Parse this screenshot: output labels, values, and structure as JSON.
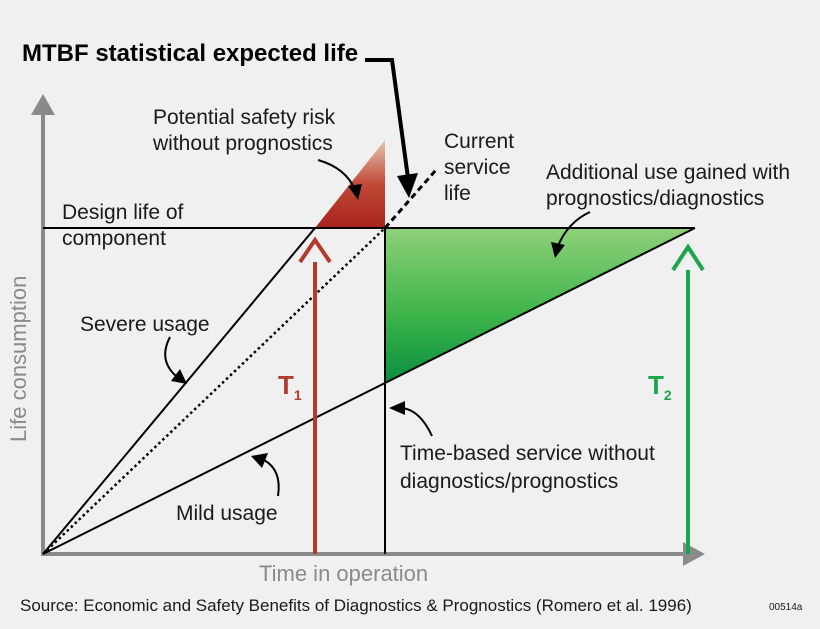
{
  "title": "MTBF statistical expected life",
  "labels": {
    "safety_risk": [
      "Potential safety risk",
      "without prognostics"
    ],
    "current_service": [
      "Current",
      "service",
      "life"
    ],
    "additional_use": [
      "Additional use gained with",
      "prognostics/diagnostics"
    ],
    "design_life": [
      "Design life of",
      "component"
    ],
    "severe_usage": "Severe usage",
    "mild_usage": "Mild usage",
    "time_based": [
      "Time-based service without",
      "diagnostics/prognostics"
    ]
  },
  "t1": {
    "letter": "T",
    "sub": "1"
  },
  "t2": {
    "letter": "T",
    "sub": "2"
  },
  "axes": {
    "y": "Life consumption",
    "x": "Time in operation"
  },
  "source": "Source: Economic and Safety Benefits of Diagnostics & Prognostics (Romero et al. 1996)",
  "figure_code": "00514a",
  "colors": {
    "red_arrow": "#b23a2e",
    "green_arrow": "#1aa64a",
    "axis_gray": "#8a8a8a",
    "t1_text": "#b23a2e",
    "t2_text": "#1aa64a"
  }
}
